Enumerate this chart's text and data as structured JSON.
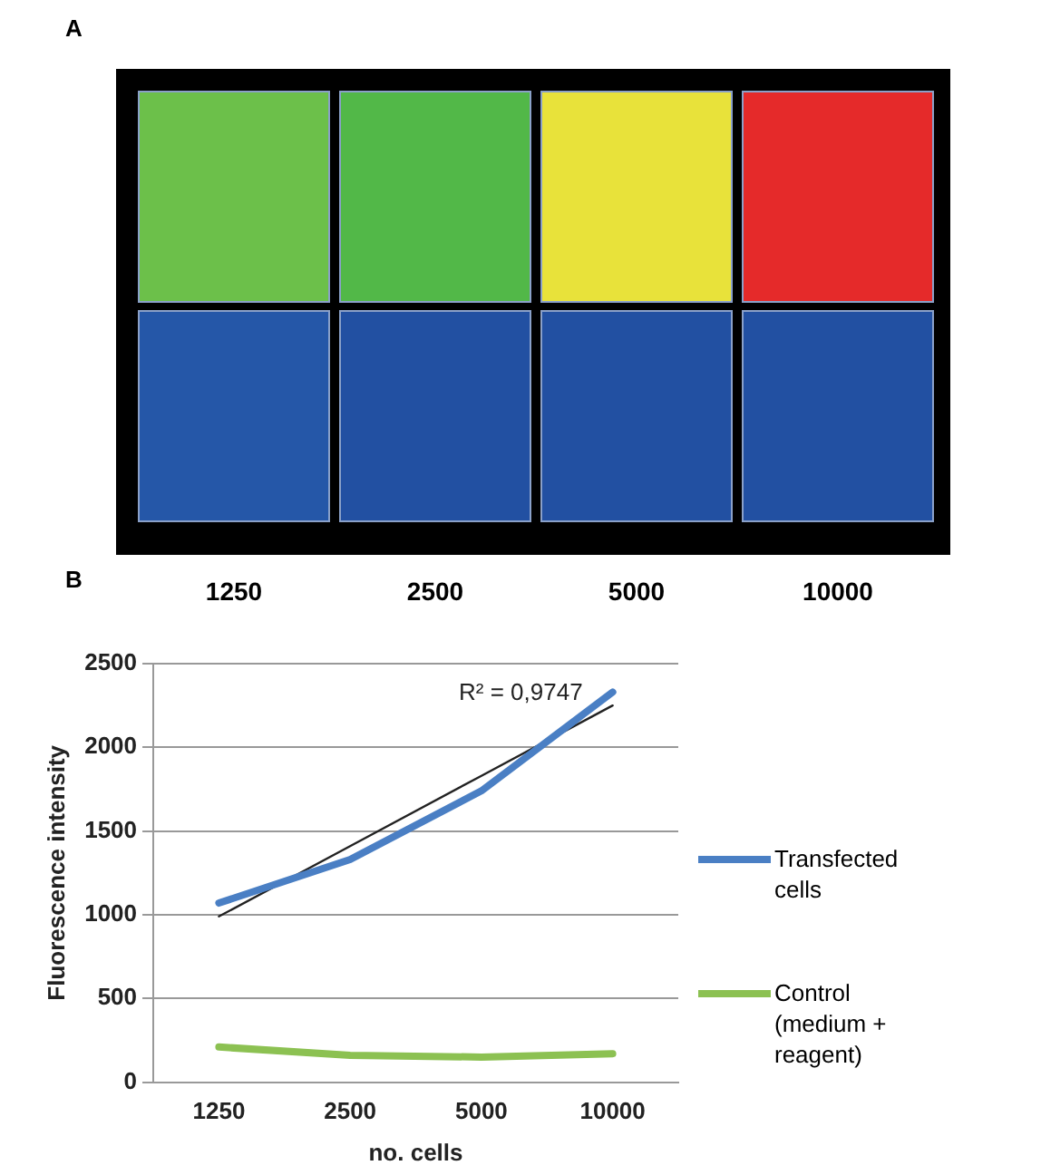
{
  "chart_data": [
    {
      "type": "other",
      "title": "A",
      "categories": [
        "1250",
        "2500",
        "5000",
        "10000"
      ],
      "colors": [
        "#6cc04a",
        "#52b848",
        "#e8e23a",
        "#e52a2a",
        "#2557a8",
        "#2250a2",
        "#2250a2",
        "#2250a2"
      ]
    },
    {
      "type": "line",
      "title": "B",
      "xlabel": "no. cells",
      "ylabel": "Fluorescence intensity",
      "categories": [
        "1250",
        "2500",
        "5000",
        "10000"
      ],
      "series": [
        {
          "name": "Transfected cells",
          "color": "#4a7fc4",
          "values": [
            1070,
            1330,
            1740,
            2330
          ]
        },
        {
          "name": "Control (medium + reagent)",
          "color": "#8cc152",
          "values": [
            210,
            160,
            150,
            170
          ]
        },
        {
          "color": "#222222",
          "values": [
            990,
            1410,
            1830,
            2250
          ],
          "line_style": "solid"
        }
      ],
      "ylim": [
        0,
        2500
      ],
      "yticks": [
        0,
        500,
        1000,
        1500,
        2000,
        2500
      ],
      "grid": "y",
      "legend": "right",
      "marker": "none",
      "annotations": [
        "R² = 0,9747"
      ]
    }
  ]
}
